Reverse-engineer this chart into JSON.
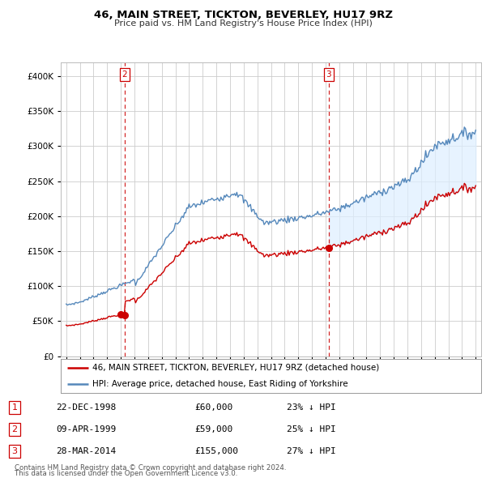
{
  "title": "46, MAIN STREET, TICKTON, BEVERLEY, HU17 9RZ",
  "subtitle": "Price paid vs. HM Land Registry's House Price Index (HPI)",
  "red_label": "46, MAIN STREET, TICKTON, BEVERLEY, HU17 9RZ (detached house)",
  "blue_label": "HPI: Average price, detached house, East Riding of Yorkshire",
  "footnote1": "Contains HM Land Registry data © Crown copyright and database right 2024.",
  "footnote2": "This data is licensed under the Open Government Licence v3.0.",
  "transactions": [
    {
      "num": 1,
      "date": "22-DEC-1998",
      "price": "£60,000",
      "pct": "23% ↓ HPI"
    },
    {
      "num": 2,
      "date": "09-APR-1999",
      "price": "£59,000",
      "pct": "25% ↓ HPI"
    },
    {
      "num": 3,
      "date": "28-MAR-2014",
      "price": "£155,000",
      "pct": "27% ↓ HPI"
    }
  ],
  "vlines": [
    {
      "x": 1999.27,
      "label": "2"
    },
    {
      "x": 2014.24,
      "label": "3"
    }
  ],
  "dot_points": [
    {
      "year": 1998.97,
      "value": 60000
    },
    {
      "year": 1999.27,
      "value": 59000
    },
    {
      "year": 2014.24,
      "value": 155000
    }
  ],
  "ylim": [
    0,
    420000
  ],
  "yticks": [
    0,
    50000,
    100000,
    150000,
    200000,
    250000,
    300000,
    350000,
    400000
  ],
  "xlim_start": 1994.6,
  "xlim_end": 2025.4,
  "background_color": "#ffffff",
  "plot_bg_color": "#ffffff",
  "shade_color": "#ddeeff",
  "grid_color": "#cccccc",
  "red_color": "#cc0000",
  "blue_color": "#5588bb",
  "title_fontsize": 9.5,
  "subtitle_fontsize": 8.0
}
